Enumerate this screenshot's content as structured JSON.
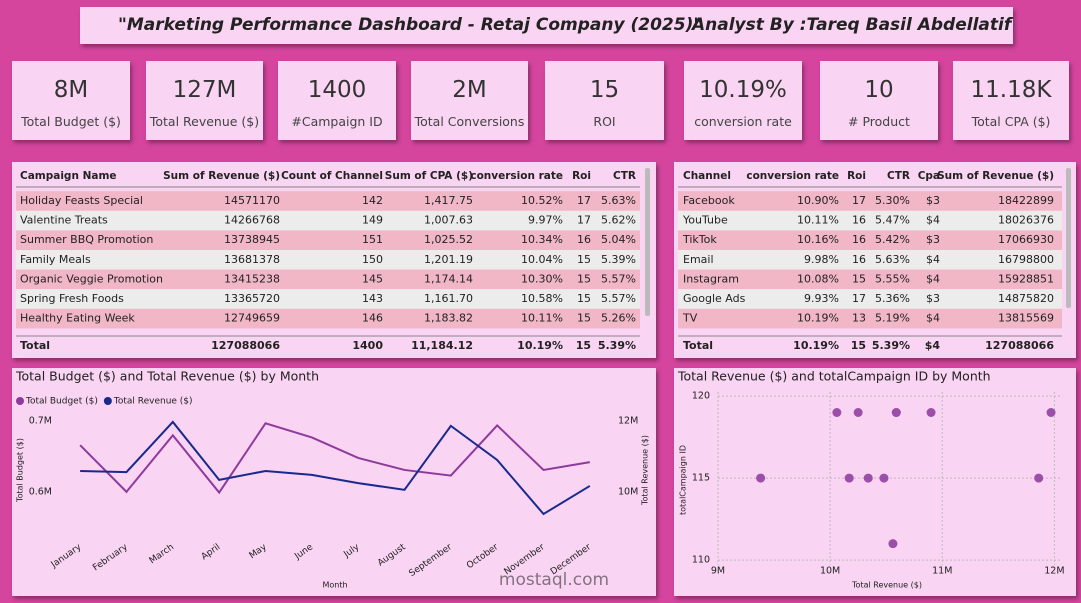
{
  "header": {
    "title": "\"Marketing Performance Dashboard - Retaj Company (2025)\"",
    "analyst": "Analyst By :Tareq Basil Abdellatif"
  },
  "kpis": [
    {
      "value": "8M",
      "label": "Total Budget ($)"
    },
    {
      "value": "127M",
      "label": "Total Revenue ($)"
    },
    {
      "value": "1400",
      "label": "#Campaign ID"
    },
    {
      "value": "2M",
      "label": "Total Conversions"
    },
    {
      "value": "15",
      "label": "ROI"
    },
    {
      "value": "10.19%",
      "label": "conversion rate"
    },
    {
      "value": "10",
      "label": "# Product"
    },
    {
      "value": "11.18K",
      "label": "Total CPA ($)"
    }
  ],
  "tables": [
    {
      "columns": [
        "Campaign Name",
        "Sum of Revenue ($)",
        "Count of Channel",
        "Sum of CPA ($)",
        "conversion rate",
        "Roi",
        "CTR"
      ],
      "rows": [
        [
          "Holiday Feasts Special",
          14571170,
          142,
          "1,417.75",
          "10.52%",
          17,
          "5.63%"
        ],
        [
          "Valentine Treats",
          14266768,
          149,
          "1,007.63",
          "9.97%",
          17,
          "5.62%"
        ],
        [
          "Summer BBQ Promotion",
          13738945,
          151,
          "1,025.52",
          "10.34%",
          16,
          "5.04%"
        ],
        [
          "Family Meals",
          13681378,
          150,
          "1,201.19",
          "10.04%",
          15,
          "5.39%"
        ],
        [
          "Organic Veggie Promotion",
          13415238,
          145,
          "1,174.14",
          "10.30%",
          15,
          "5.57%"
        ],
        [
          "Spring Fresh Foods",
          13365720,
          143,
          "1,161.70",
          "10.58%",
          15,
          "5.57%"
        ],
        [
          "Healthy Eating Week",
          12749659,
          146,
          "1,183.82",
          "10.11%",
          15,
          "5.26%"
        ]
      ],
      "total": [
        "Total",
        127088066,
        1400,
        "11,184.12",
        "10.19%",
        15,
        "5.39%"
      ]
    },
    {
      "columns": [
        "Channel",
        "conversion rate",
        "Roi",
        "CTR",
        "Cpa",
        "Sum of Revenue ($)"
      ],
      "rows": [
        [
          "Facebook",
          "10.90%",
          17,
          "5.30%",
          "$3",
          18422899
        ],
        [
          "YouTube",
          "10.11%",
          16,
          "5.47%",
          "$4",
          18026376
        ],
        [
          "TikTok",
          "10.16%",
          16,
          "5.42%",
          "$3",
          17066930
        ],
        [
          "Email",
          "9.98%",
          16,
          "5.63%",
          "$4",
          16798800
        ],
        [
          "Instagram",
          "10.08%",
          15,
          "5.55%",
          "$4",
          15928851
        ],
        [
          "Google Ads",
          "9.93%",
          17,
          "5.36%",
          "$3",
          14875820
        ],
        [
          "TV",
          "10.19%",
          13,
          "5.19%",
          "$4",
          13815569
        ]
      ],
      "total": [
        "Total",
        "10.19%",
        15,
        "5.39%",
        "$4",
        127088066
      ]
    }
  ],
  "chart_data": [
    {
      "type": "line",
      "title": "Total Budget ($) and Total Revenue ($) by Month",
      "x_label": "Month",
      "y_label": "Total Budget ($)",
      "y2_label": "Total Revenue ($)",
      "categories": [
        "January",
        "February",
        "March",
        "April",
        "May",
        "June",
        "July",
        "August",
        "September",
        "October",
        "November",
        "December"
      ],
      "series": [
        {
          "name": "Total Budget ($)",
          "color": "#8e3a9d",
          "values": [
            666000,
            600000,
            680000,
            599000,
            697000,
            677000,
            648000,
            631000,
            623000,
            694000,
            631000,
            642000
          ]
        },
        {
          "name": "Total Revenue ($)",
          "color": "#1a2a8c",
          "axis": "y2",
          "values": [
            10590000,
            10560000,
            11970000,
            10340000,
            10590000,
            10480000,
            10250000,
            10060000,
            11860000,
            10900000,
            9380000,
            10170000
          ]
        }
      ],
      "ylim": [
        546000,
        713000
      ],
      "yticks": [
        {
          "value": 600000,
          "label": "0.6M"
        },
        {
          "value": 700000,
          "label": "0.7M"
        }
      ],
      "y2lim": [
        8930000,
        12250000
      ],
      "y2ticks": [
        {
          "value": 10000000,
          "label": "10M"
        },
        {
          "value": 12000000,
          "label": "12M"
        }
      ],
      "grid": false,
      "legend": "top-left"
    },
    {
      "type": "scatter",
      "title": "Total Revenue ($) and totalCampaign ID by Month",
      "x_label": "Total Revenue ($)",
      "y_label": "totalCampaign ID",
      "color": "#9b4fa8",
      "x": [
        10590000,
        10560000,
        11970000,
        10340000,
        10590000,
        10480000,
        10250000,
        10060000,
        11860000,
        10900000,
        9380000,
        10170000
      ],
      "values": [
        119,
        111,
        119,
        115,
        119,
        115,
        119,
        119,
        115,
        119,
        115,
        115
      ],
      "xlim": [
        9000000,
        12050000
      ],
      "xticks": [
        {
          "value": 9000000,
          "label": "9M"
        },
        {
          "value": 10000000,
          "label": "10M"
        },
        {
          "value": 11000000,
          "label": "11M"
        },
        {
          "value": 12000000,
          "label": "12M"
        }
      ],
      "ylim": [
        109.7,
        120.25
      ],
      "yticks": [
        110,
        115,
        120
      ],
      "grid": true
    }
  ],
  "watermark": "mostaql.com"
}
